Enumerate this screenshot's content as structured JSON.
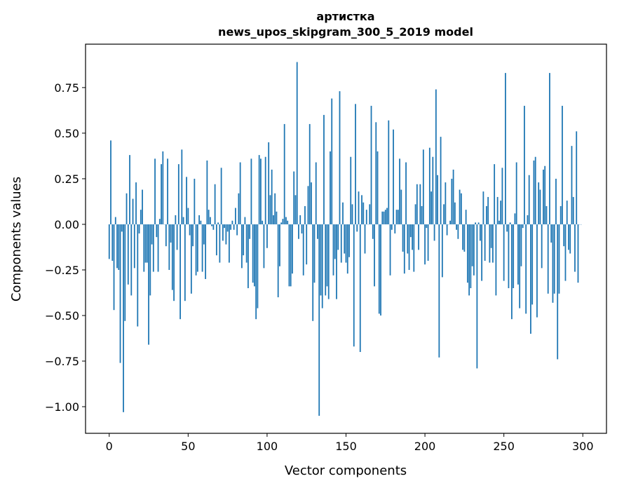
{
  "chart_data": {
    "type": "bar",
    "title": [
      "артистка",
      "news_upos_skipgram_300_5_2019 model"
    ],
    "xlabel": "Vector components",
    "ylabel": "Components values",
    "xlim": [
      -15,
      315
    ],
    "ylim": [
      -1.146,
      0.988
    ],
    "xticks": [
      0,
      50,
      100,
      150,
      200,
      250,
      300
    ],
    "xtick_labels": [
      "0",
      "50",
      "100",
      "150",
      "200",
      "250",
      "300"
    ],
    "yticks": [
      -1.0,
      -0.75,
      -0.5,
      -0.25,
      0.0,
      0.25,
      0.5,
      0.75
    ],
    "ytick_labels": [
      "−1.00",
      "−0.75",
      "−0.50",
      "−0.25",
      "0.00",
      "0.25",
      "0.50",
      "0.75"
    ],
    "grid": false,
    "bar_color": "#1f77b4",
    "values": [
      -0.19,
      0.46,
      -0.2,
      -0.47,
      0.04,
      -0.24,
      -0.25,
      -0.76,
      -0.04,
      -1.03,
      -0.53,
      0.17,
      -0.33,
      0.38,
      -0.39,
      0.14,
      -0.24,
      0.23,
      -0.56,
      -0.05,
      0.08,
      0.19,
      -0.26,
      -0.21,
      -0.21,
      -0.66,
      -0.39,
      -0.11,
      -0.26,
      0.36,
      -0.07,
      -0.26,
      0.03,
      0.33,
      0.4,
      0.0,
      -0.12,
      0.36,
      -0.25,
      -0.1,
      -0.36,
      -0.42,
      0.05,
      -0.14,
      0.33,
      -0.52,
      0.41,
      0.04,
      -0.42,
      0.26,
      0.09,
      -0.06,
      -0.38,
      -0.12,
      0.25,
      -0.28,
      -0.26,
      0.05,
      0.02,
      -0.26,
      -0.11,
      -0.3,
      0.35,
      0.08,
      0.04,
      -0.01,
      -0.03,
      0.22,
      -0.17,
      0.01,
      -0.21,
      0.31,
      -0.09,
      -0.02,
      -0.11,
      -0.04,
      -0.21,
      -0.03,
      0.02,
      -0.03,
      0.09,
      -0.06,
      0.17,
      0.34,
      -0.24,
      -0.17,
      0.04,
      -0.21,
      -0.35,
      -0.08,
      0.36,
      -0.32,
      -0.34,
      -0.52,
      -0.46,
      0.38,
      0.36,
      0.02,
      -0.24,
      0.37,
      -0.13,
      0.45,
      0.16,
      0.3,
      0.05,
      0.17,
      0.07,
      -0.4,
      -0.23,
      0.01,
      0.03,
      0.55,
      0.04,
      0.02,
      -0.34,
      -0.34,
      -0.27,
      0.29,
      0.16,
      0.89,
      -0.08,
      0.05,
      -0.05,
      -0.28,
      0.1,
      -0.22,
      0.21,
      0.55,
      0.23,
      -0.53,
      -0.32,
      0.34,
      -0.08,
      -1.05,
      -0.39,
      -0.46,
      0.6,
      -0.39,
      -0.34,
      -0.41,
      0.4,
      0.69,
      -0.28,
      -0.19,
      -0.41,
      -0.14,
      0.73,
      -0.21,
      0.12,
      -0.16,
      -0.21,
      -0.27,
      -0.18,
      0.37,
      0.11,
      -0.67,
      0.66,
      -0.04,
      0.18,
      -0.7,
      0.16,
      0.12,
      -0.16,
      0.08,
      0.0,
      0.11,
      0.65,
      -0.08,
      -0.34,
      0.56,
      0.4,
      -0.49,
      -0.5,
      0.07,
      0.07,
      0.08,
      0.09,
      0.57,
      -0.28,
      -0.03,
      0.52,
      -0.05,
      0.08,
      0.08,
      0.36,
      0.19,
      -0.15,
      -0.27,
      0.34,
      -0.16,
      -0.25,
      -0.07,
      -0.14,
      -0.26,
      0.11,
      0.22,
      -0.14,
      0.22,
      0.1,
      0.41,
      -0.22,
      -0.02,
      -0.2,
      0.42,
      0.18,
      0.37,
      -0.09,
      0.74,
      0.27,
      -0.73,
      0.48,
      -0.29,
      0.11,
      0.23,
      -0.06,
      0.0,
      0.02,
      0.25,
      0.3,
      0.12,
      -0.03,
      -0.08,
      0.19,
      0.17,
      -0.14,
      -0.15,
      0.08,
      -0.32,
      -0.39,
      -0.35,
      -0.23,
      -0.28,
      0.01,
      -0.79,
      0.01,
      -0.09,
      -0.31,
      0.18,
      -0.2,
      0.1,
      0.15,
      -0.21,
      -0.13,
      -0.21,
      0.33,
      -0.39,
      0.15,
      0.02,
      0.13,
      0.31,
      -0.31,
      0.83,
      -0.04,
      -0.35,
      0.01,
      -0.52,
      -0.35,
      0.06,
      0.34,
      -0.33,
      -0.46,
      -0.23,
      -0.02,
      0.65,
      -0.49,
      0.05,
      0.27,
      -0.6,
      -0.44,
      0.35,
      0.37,
      -0.51,
      0.23,
      0.19,
      -0.24,
      0.3,
      0.32,
      0.1,
      -0.38,
      0.83,
      -0.1,
      -0.43,
      -0.38,
      0.25,
      -0.74,
      -0.38,
      0.1,
      0.65,
      -0.12,
      -0.31,
      0.13,
      -0.14,
      -0.16,
      0.43,
      0.15,
      -0.26,
      0.51,
      -0.32,
      0.0,
      0.0
    ]
  }
}
